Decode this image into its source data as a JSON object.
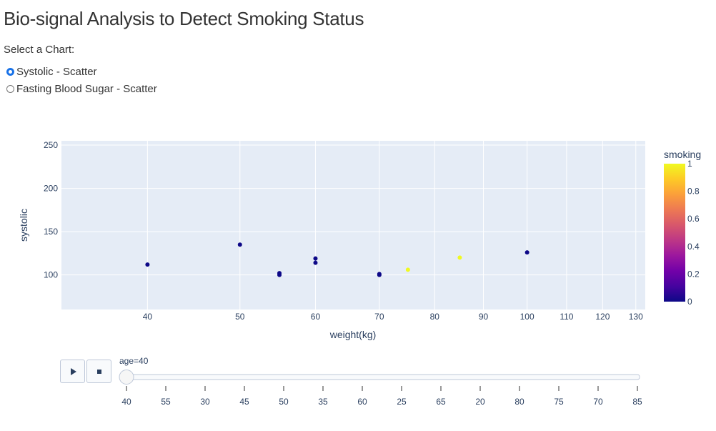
{
  "page": {
    "title": "Bio-signal Analysis to Detect Smoking Status",
    "select_label": "Select a Chart:",
    "options": [
      {
        "label": "Systolic - Scatter",
        "selected": true
      },
      {
        "label": "Fasting Blood Sugar - Scatter",
        "selected": false
      }
    ]
  },
  "slider": {
    "current_label": "age=40",
    "ticks": [
      "40",
      "55",
      "30",
      "45",
      "50",
      "35",
      "60",
      "25",
      "65",
      "20",
      "80",
      "75",
      "70",
      "85"
    ],
    "current_index": 0,
    "play_icon": "play-icon",
    "stop_icon": "stop-icon"
  },
  "chart_data": {
    "type": "scatter",
    "xlabel": "weight(kg)",
    "ylabel": "systolic",
    "x_scale": "log",
    "xlim": [
      32.5,
      133
    ],
    "ylim": [
      60,
      255
    ],
    "x_ticks": [
      40,
      50,
      60,
      70,
      80,
      90,
      100,
      110,
      120,
      130
    ],
    "y_ticks": [
      100,
      150,
      200,
      250
    ],
    "colorbar": {
      "title": "smoking",
      "range": [
        0,
        1
      ],
      "ticks": [
        "0",
        "0.2",
        "0.4",
        "0.6",
        "0.8",
        "1"
      ],
      "colors": [
        "#0d0887",
        "#46039f",
        "#7201a8",
        "#9c179e",
        "#bd3786",
        "#d8576b",
        "#ed7953",
        "#fb9f3a",
        "#fdca26",
        "#f0f921"
      ]
    },
    "points": [
      {
        "x": 40,
        "y": 112,
        "smoking": 0
      },
      {
        "x": 50,
        "y": 135,
        "smoking": 0
      },
      {
        "x": 55,
        "y": 102,
        "smoking": 0
      },
      {
        "x": 55,
        "y": 100,
        "smoking": 0
      },
      {
        "x": 60,
        "y": 119,
        "smoking": 0
      },
      {
        "x": 60,
        "y": 114,
        "smoking": 0
      },
      {
        "x": 70,
        "y": 101,
        "smoking": 0
      },
      {
        "x": 70,
        "y": 100,
        "smoking": 0
      },
      {
        "x": 75,
        "y": 106,
        "smoking": 1
      },
      {
        "x": 85,
        "y": 120,
        "smoking": 1
      },
      {
        "x": 100,
        "y": 126,
        "smoking": 0
      }
    ]
  }
}
